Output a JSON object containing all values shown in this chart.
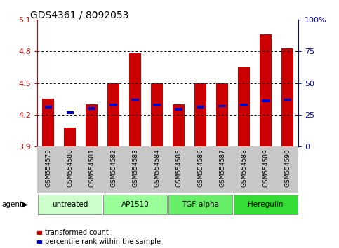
{
  "title": "GDS4361 / 8092053",
  "samples": [
    "GSM554579",
    "GSM554580",
    "GSM554581",
    "GSM554582",
    "GSM554583",
    "GSM554584",
    "GSM554585",
    "GSM554586",
    "GSM554587",
    "GSM554588",
    "GSM554589",
    "GSM554590"
  ],
  "red_values": [
    4.35,
    4.08,
    4.3,
    4.5,
    4.78,
    4.5,
    4.3,
    4.5,
    4.5,
    4.65,
    4.96,
    4.83
  ],
  "blue_values": [
    4.27,
    4.22,
    4.26,
    4.29,
    4.34,
    4.29,
    4.25,
    4.27,
    4.28,
    4.29,
    4.33,
    4.34
  ],
  "ylim_left": [
    3.9,
    5.1
  ],
  "ylim_right": [
    0,
    100
  ],
  "yticks_left": [
    3.9,
    4.2,
    4.5,
    4.8,
    5.1
  ],
  "yticks_right": [
    0,
    25,
    50,
    75,
    100
  ],
  "ytick_labels_left": [
    "3.9",
    "4.2",
    "4.5",
    "4.8",
    "5.1"
  ],
  "ytick_labels_right": [
    "0",
    "25",
    "50",
    "75",
    "100%"
  ],
  "gridlines_at": [
    4.2,
    4.5,
    4.8
  ],
  "bar_bottom": 3.9,
  "bar_width": 0.55,
  "red_color": "#cc0000",
  "blue_color": "#0000cc",
  "agent_groups": [
    {
      "label": "untreated",
      "start": 0,
      "end": 3,
      "color": "#ccffcc"
    },
    {
      "label": "AP1510",
      "start": 3,
      "end": 6,
      "color": "#99ff99"
    },
    {
      "label": "TGF-alpha",
      "start": 6,
      "end": 9,
      "color": "#66ee66"
    },
    {
      "label": "Heregulin",
      "start": 9,
      "end": 12,
      "color": "#33dd33"
    }
  ],
  "bg_color": "#ffffff",
  "plot_bg": "#ffffff",
  "tick_area_bg": "#c8c8c8",
  "legend_red": "transformed count",
  "legend_blue": "percentile rank within the sample",
  "agent_label": "agent",
  "left_tick_color": "#cc0000",
  "right_tick_color": "#0000cc",
  "title_fontsize": 10,
  "axis_fontsize": 8,
  "sample_fontsize": 6.5
}
